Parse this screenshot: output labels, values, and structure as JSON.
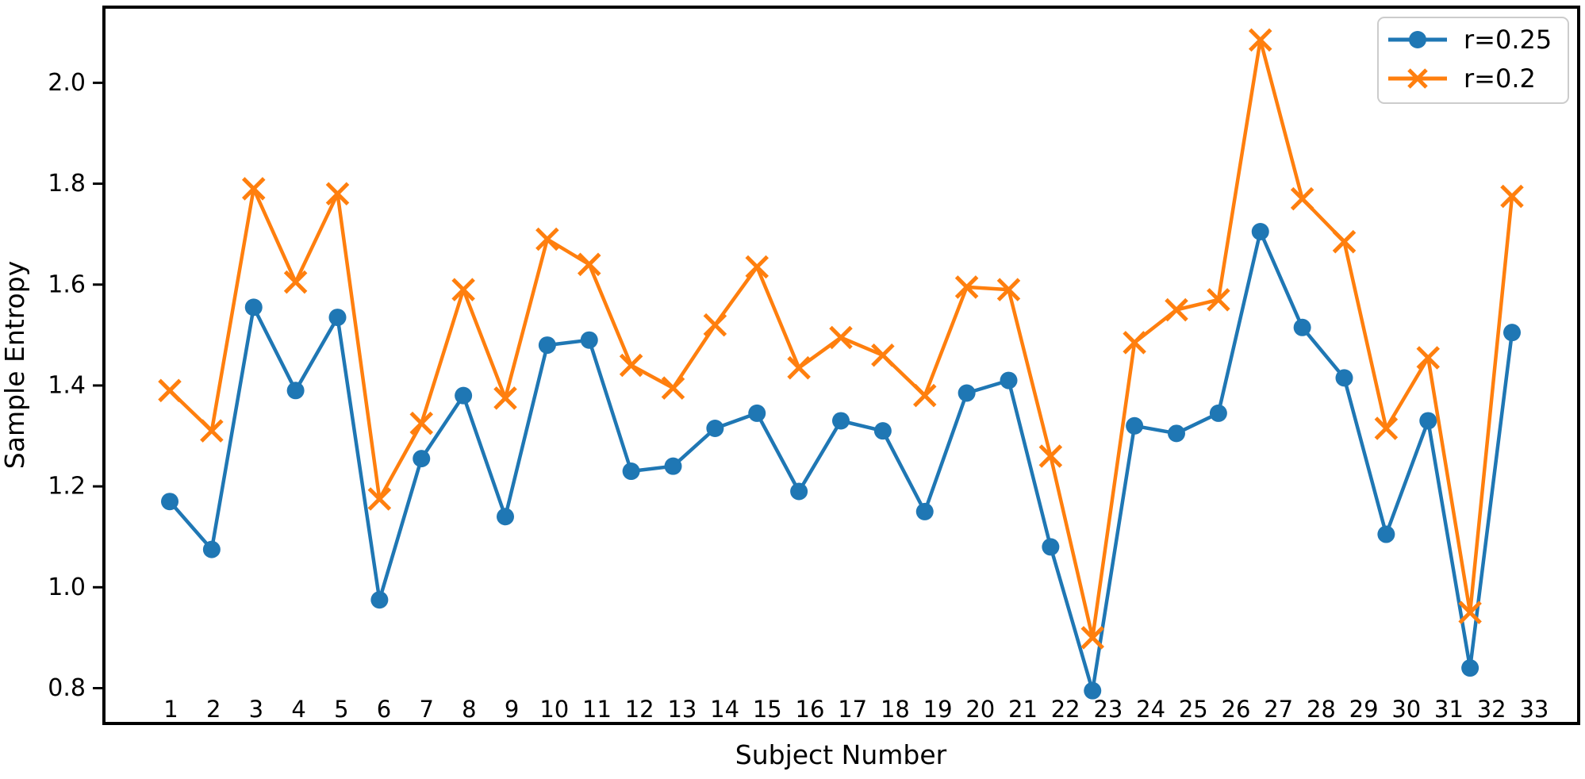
{
  "chart_data": {
    "type": "line",
    "title": "",
    "xlabel": "Subject Number",
    "ylabel": "Sample Entropy",
    "x": [
      1,
      2,
      3,
      4,
      5,
      6,
      7,
      8,
      9,
      10,
      11,
      12,
      13,
      14,
      15,
      16,
      17,
      18,
      19,
      20,
      21,
      22,
      23,
      24,
      25,
      26,
      27,
      28,
      29,
      30,
      31,
      32,
      33
    ],
    "series": [
      {
        "name": "r=0.25",
        "color": "#1f77b4",
        "marker": "circle",
        "values": [
          1.17,
          1.075,
          1.555,
          1.39,
          1.535,
          0.975,
          1.255,
          1.38,
          1.14,
          1.48,
          1.49,
          1.23,
          1.24,
          1.315,
          1.345,
          1.19,
          1.33,
          1.31,
          1.15,
          1.385,
          1.41,
          1.08,
          0.795,
          1.32,
          1.305,
          1.345,
          1.705,
          1.515,
          1.415,
          1.105,
          1.33,
          0.84,
          1.505
        ]
      },
      {
        "name": "r=0.2",
        "color": "#ff7f0e",
        "marker": "x",
        "values": [
          1.39,
          1.31,
          1.79,
          1.605,
          1.78,
          1.175,
          1.325,
          1.59,
          1.375,
          1.69,
          1.64,
          1.44,
          1.395,
          1.52,
          1.635,
          1.435,
          1.495,
          1.46,
          1.38,
          1.595,
          1.59,
          1.26,
          0.9,
          1.485,
          1.55,
          1.57,
          2.085,
          1.77,
          1.685,
          1.315,
          1.455,
          0.95,
          1.775
        ]
      }
    ],
    "y_ticks": [
      0.8,
      1.0,
      1.2,
      1.4,
      1.6,
      1.8,
      2.0
    ],
    "ylim": [
      0.73,
      2.15
    ],
    "grid": false,
    "legend_position": "upper right",
    "colors": {
      "background": "#ffffff",
      "axis": "#000000",
      "legend_border": "#cccccc"
    }
  }
}
